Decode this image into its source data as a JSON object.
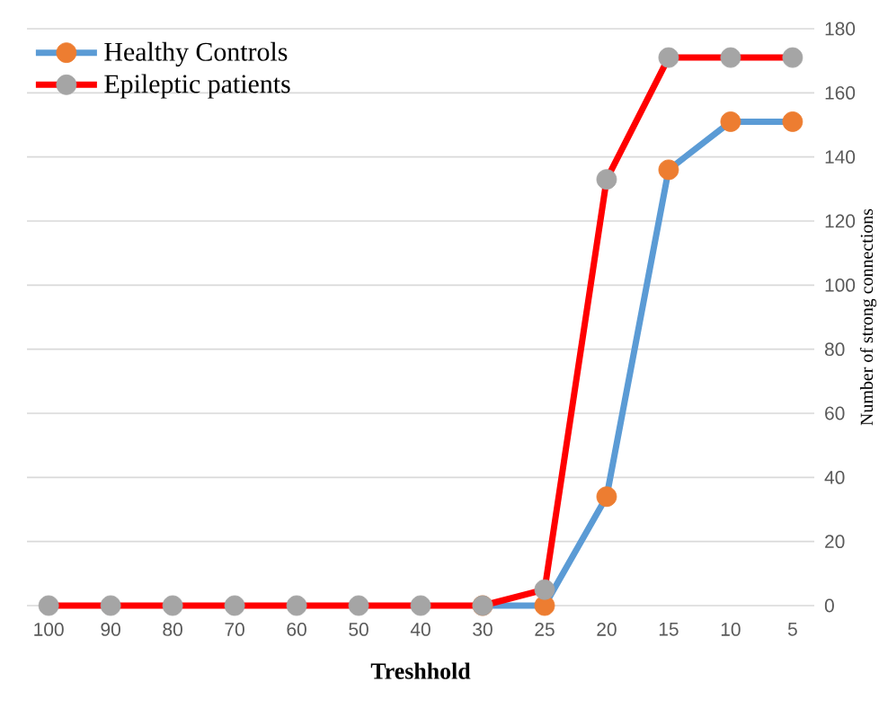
{
  "chart_data": {
    "type": "line",
    "xlabel": "Treshhold",
    "ylabel": "Number of strong connections",
    "categories": [
      "100",
      "90",
      "80",
      "70",
      "60",
      "50",
      "40",
      "30",
      "25",
      "20",
      "15",
      "10",
      "5"
    ],
    "series": [
      {
        "name": "Healthy Controls",
        "color": "#5b9bd5",
        "colors": [
          "#ed7d31",
          "#ed7d31",
          "#ed7d31",
          "#ed7d31",
          "#ed7d31",
          "#ed7d31",
          "#ed7d31",
          "#ed7d31",
          "#ed7d31",
          "#ed7d31",
          "#ed7d31",
          "#ed7d31",
          "#ed7d31"
        ],
        "values": [
          null,
          null,
          null,
          null,
          null,
          null,
          null,
          0,
          0,
          34,
          136,
          151,
          151
        ]
      },
      {
        "name": "Epileptic patients",
        "color": "#ff0000",
        "colors": [
          "#a5a5a5",
          "#a5a5a5",
          "#a5a5a5",
          "#a5a5a5",
          "#a5a5a5",
          "#a5a5a5",
          "#a5a5a5",
          "#a5a5a5",
          "#a5a5a5",
          "#a5a5a5",
          "#a5a5a5",
          "#a5a5a5",
          "#a5a5a5"
        ],
        "values": [
          0,
          0,
          0,
          0,
          0,
          0,
          0,
          0,
          5,
          133,
          171,
          171,
          171
        ]
      }
    ],
    "ylim": [
      0,
      180
    ],
    "yticks": [
      0,
      20,
      40,
      60,
      80,
      100,
      120,
      140,
      160,
      180
    ],
    "grid": "y",
    "legend": "top left",
    "marker": "circle",
    "line_style": "solid"
  }
}
